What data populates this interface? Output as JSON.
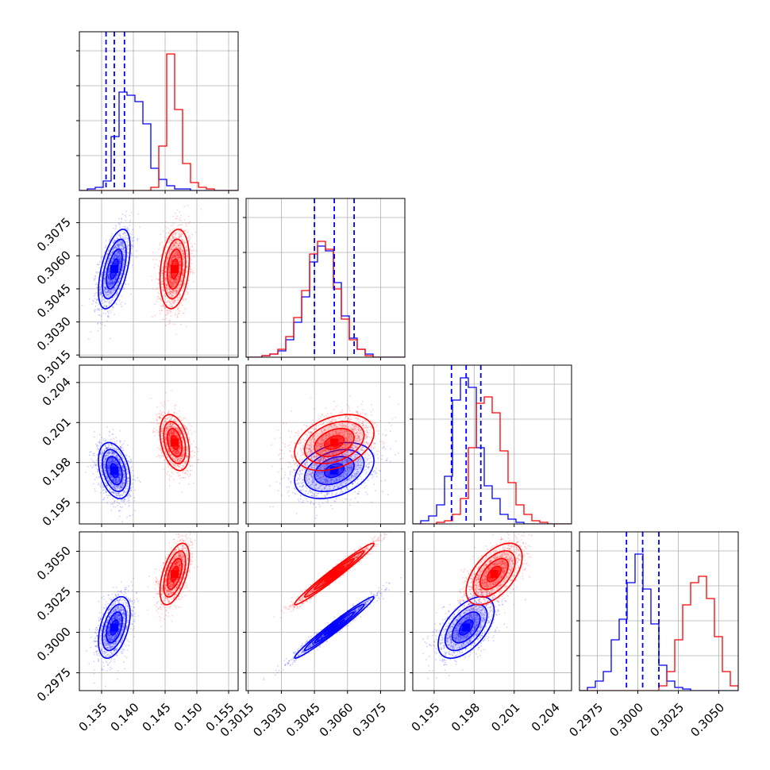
{
  "chart_data": {
    "type": "corner",
    "colors": {
      "blue": "#0000ff",
      "red": "#ff0000"
    },
    "parameters": [
      {
        "ticks": [
          0.135,
          0.14,
          0.145,
          0.15,
          0.155
        ],
        "tick_labels": [
          "0.135",
          "0.140",
          "0.145",
          "0.150",
          "0.155"
        ],
        "range": [
          0.1315,
          0.1565
        ]
      },
      {
        "ticks": [
          0.3015,
          0.303,
          0.3045,
          0.306,
          0.3075
        ],
        "tick_labels": [
          "0.3015",
          "0.3030",
          "0.3045",
          "0.3060",
          "0.3075"
        ],
        "range": [
          0.3014,
          0.3086
        ]
      },
      {
        "ticks": [
          0.195,
          0.198,
          0.201,
          0.204
        ],
        "tick_labels": [
          "0.195",
          "0.198",
          "0.201",
          "0.204"
        ],
        "range": [
          0.1934,
          0.2053
        ]
      },
      {
        "ticks": [
          0.2975,
          0.3,
          0.3025,
          0.305
        ],
        "tick_labels": [
          "0.2975",
          "0.3000",
          "0.3025",
          "0.3050"
        ],
        "range": [
          0.2964,
          0.3062
        ]
      }
    ],
    "series": [
      {
        "color": "blue",
        "mean": [
          0.137,
          0.3054,
          0.1974,
          0.3003
        ],
        "std": [
          0.00125,
          0.0009,
          0.00105,
          0.00095
        ],
        "correlations": {
          "0-1": 0.55,
          "0-2": -0.35,
          "0-3": 0.45,
          "1-2": 0.35,
          "1-3": 0.98,
          "2-3": 0.55
        },
        "quantiles_16_50_84": [
          [
            0.1357,
            0.137,
            0.1386
          ],
          [
            0.3045,
            0.3054,
            0.3063
          ],
          [
            0.1963,
            0.1974,
            0.1985
          ],
          [
            0.2993,
            0.3003,
            0.3013
          ]
        ],
        "histograms": [
          [
            0,
            0.01,
            0.02,
            0.06,
            0.34,
            0.62,
            0.6,
            0.56,
            0.42,
            0.14,
            0.07,
            0.03,
            0.01,
            0.01,
            0,
            0,
            0,
            0,
            0,
            0
          ],
          [
            0,
            0,
            0.01,
            0.02,
            0.04,
            0.11,
            0.22,
            0.38,
            0.6,
            0.7,
            0.67,
            0.47,
            0.26,
            0.12,
            0.05,
            0.02,
            0,
            0,
            0,
            0
          ],
          [
            0,
            0.02,
            0.05,
            0.12,
            0.3,
            0.78,
            0.92,
            0.86,
            0.48,
            0.24,
            0.16,
            0.06,
            0.03,
            0.01,
            0,
            0,
            0,
            0,
            0,
            0
          ],
          [
            0,
            0.02,
            0.06,
            0.12,
            0.32,
            0.45,
            0.68,
            0.86,
            0.64,
            0.42,
            0.16,
            0.06,
            0.02,
            0.01,
            0,
            0,
            0,
            0,
            0,
            0
          ]
        ]
      },
      {
        "color": "red",
        "mean": [
          0.1465,
          0.3054,
          0.1995,
          0.3036
        ],
        "std": [
          0.00115,
          0.0009,
          0.00105,
          0.00095
        ],
        "correlations": {
          "0-1": 0.25,
          "0-2": -0.35,
          "0-3": 0.55,
          "1-2": 0.35,
          "1-3": 0.98,
          "2-3": 0.55
        },
        "histograms": [
          [
            0,
            0,
            0,
            0,
            0,
            0,
            0,
            0,
            0,
            0.02,
            0.28,
            0.86,
            0.51,
            0.17,
            0.05,
            0.02,
            0.01,
            0,
            0,
            0
          ],
          [
            0,
            0,
            0.01,
            0.02,
            0.05,
            0.13,
            0.25,
            0.42,
            0.65,
            0.73,
            0.68,
            0.43,
            0.24,
            0.11,
            0.05,
            0.01,
            0,
            0,
            0,
            0
          ],
          [
            0,
            0,
            0,
            0.01,
            0.02,
            0.06,
            0.16,
            0.48,
            0.76,
            0.8,
            0.7,
            0.46,
            0.26,
            0.12,
            0.06,
            0.02,
            0.01,
            0,
            0,
            0
          ],
          [
            0,
            0,
            0,
            0,
            0,
            0,
            0,
            0,
            0,
            0,
            0.03,
            0.12,
            0.32,
            0.54,
            0.68,
            0.72,
            0.58,
            0.34,
            0.12,
            0.03
          ]
        ]
      }
    ]
  }
}
